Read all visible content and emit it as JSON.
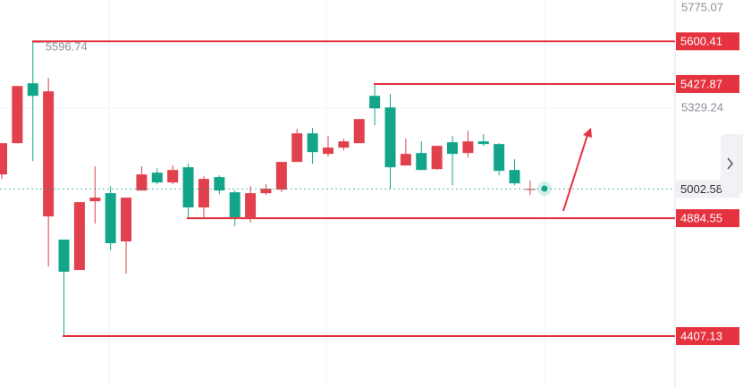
{
  "chart_data": {
    "type": "candlestick",
    "up_color": "#e0414d",
    "down_color": "#12a58a",
    "ylim": [
      4201,
      5775.07
    ],
    "yticks": [
      5775.07,
      5329.24
    ],
    "grid": true,
    "open": [
      5061.6,
      5188.2,
      5430.5,
      4891.6,
      4797.6,
      4674.7,
      4953.2,
      4985.7,
      4790.4,
      4996.6,
      5068.9,
      5029.1,
      5090.6,
      4927.9,
      5050.8,
      4989.3,
      4888.0,
      4985.7,
      5000.2,
      5112.3,
      5227.9,
      5144.8,
      5170.1,
      5188.2,
      5379.8,
      5332.8,
      5097.8,
      5148.4,
      5083.3,
      5191.8,
      5148.4,
      5195.5,
      5184.6,
      5079.7,
      5001.0
    ],
    "high": [
      5188.2,
      5419.6,
      5596.74,
      5452.2,
      4797.6,
      4949.6,
      5094.2,
      5014.6,
      4967.6,
      5094.2,
      5086.9,
      5097.8,
      5105.0,
      5054.4,
      5058.0,
      4996.6,
      5014.6,
      5021.8,
      5112.3,
      5246.0,
      5249.6,
      5217.1,
      5206.3,
      5285.8,
      5427.87,
      5387.1,
      5206.3,
      5195.5,
      5177.4,
      5217.1,
      5238.8,
      5224.4,
      5188.2,
      5123.1,
      5036.3
    ],
    "low": [
      5043.5,
      5188.2,
      5115.9,
      4689.2,
      4407.13,
      4674.7,
      4862.7,
      4754.3,
      4660.2,
      4996.6,
      5021.8,
      5021.8,
      4884.55,
      4884.55,
      4982.1,
      4851.9,
      4866.3,
      4978.5,
      4989.3,
      5112.3,
      5105.0,
      5134.0,
      5159.3,
      5188.2,
      5260.5,
      5003.8,
      5097.8,
      5079.7,
      5079.7,
      5018.2,
      5130.3,
      5177.4,
      5058.0,
      5018.2,
      4978.5
    ],
    "close": [
      5188.2,
      5419.6,
      5379.8,
      5397.9,
      4667.5,
      4949.6,
      4967.6,
      4783.2,
      4967.6,
      5061.6,
      5029.1,
      5079.7,
      4927.9,
      5043.5,
      4996.6,
      4888.0,
      4985.7,
      5003.8,
      5112.3,
      5227.9,
      5152.0,
      5170.1,
      5195.5,
      5285.8,
      5329.2,
      5090.6,
      5144.8,
      5079.7,
      5177.4,
      5144.8,
      5195.5,
      5184.6,
      5076.1,
      5025.5,
      5002.58
    ],
    "levels": [
      5600.41,
      5427.87,
      4884.55,
      4407.13
    ],
    "level_color": "#e5323f"
  }
}
